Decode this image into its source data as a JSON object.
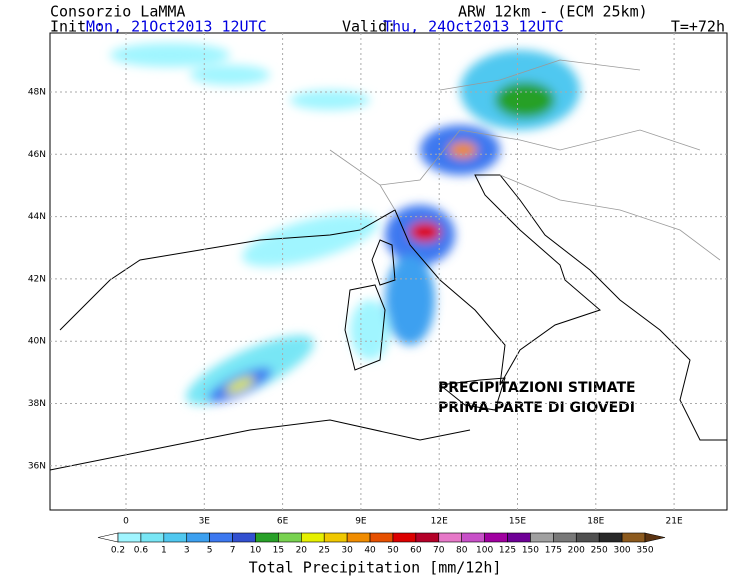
{
  "header": {
    "source": "Consorzio LaMMA",
    "init_label": "Init.:",
    "init_time": "Mon, 21Oct2013 12UTC",
    "model": "ARW 12km - (ECM 25km)",
    "valid_label": "Valid:",
    "valid_time": "Thu, 24Oct2013 12UTC",
    "lead": "T=+72h"
  },
  "map": {
    "lat_labels": [
      "48N",
      "46N",
      "44N",
      "42N",
      "40N",
      "38N",
      "36N"
    ],
    "lon_labels": [
      "0",
      "3E",
      "6E",
      "9E",
      "12E",
      "15E",
      "18E",
      "21E"
    ],
    "annotation": [
      "PRECIPITAZIONI STIMATE",
      "PRIMA PARTE DI GIOVEDI"
    ]
  },
  "colorbar": {
    "title": "Total Precipitation [mm/12h]",
    "labels": [
      "0.2",
      "0.6",
      "1",
      "3",
      "5",
      "7",
      "10",
      "15",
      "20",
      "25",
      "30",
      "40",
      "50",
      "60",
      "70",
      "80",
      "100",
      "125",
      "150",
      "175",
      "200",
      "250",
      "300",
      "350"
    ],
    "colors": [
      "#ffffff",
      "#a0f5ff",
      "#78e6f5",
      "#50c8f0",
      "#3ca0f0",
      "#3c78f0",
      "#3250d0",
      "#28a028",
      "#78d250",
      "#e6f000",
      "#f0c800",
      "#f08c00",
      "#e65000",
      "#dc0000",
      "#b40028",
      "#e678c8",
      "#c850c8",
      "#a000a0",
      "#6e0096",
      "#a0a0a0",
      "#787878",
      "#505050",
      "#282828",
      "#8c5a1e",
      "#5a3210"
    ]
  }
}
